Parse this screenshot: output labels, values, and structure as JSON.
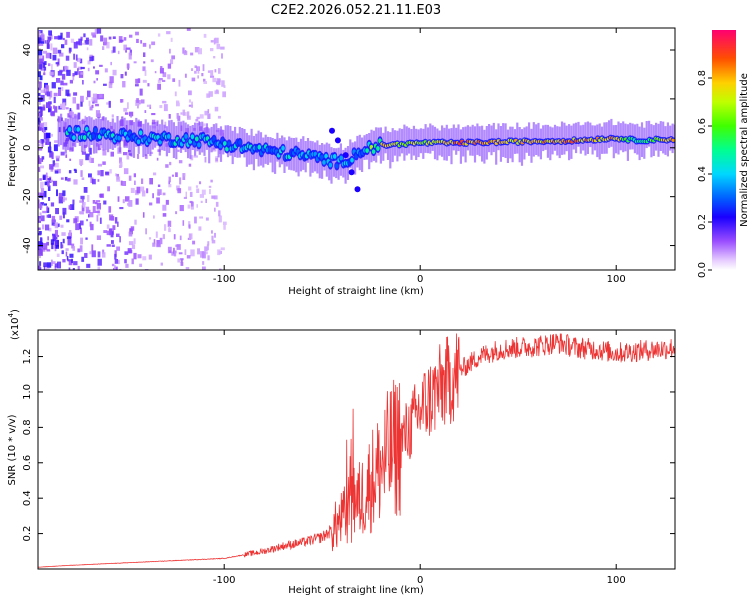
{
  "title": "C2E2.2026.052.21.11.E03",
  "chart_data": [
    {
      "type": "heatmap",
      "name": "spectrogram",
      "xlabel": "Height of straight line (km)",
      "ylabel": "Frequency (Hz)",
      "xlim": [
        -195,
        130
      ],
      "ylim": [
        -50,
        49
      ],
      "xticks": [
        -100,
        0,
        100
      ],
      "yticks": [
        -40,
        -20,
        0,
        20,
        40
      ],
      "grid": false,
      "colorbar": {
        "label": "Normalized spectral amplitude",
        "range": [
          0,
          1
        ],
        "ticks": [
          0.0,
          0.2,
          0.4,
          0.6,
          0.8
        ],
        "colors": [
          "#ffffff",
          "#b070ff",
          "#4b00ff",
          "#0000ff",
          "#00d8ff",
          "#00ff70",
          "#a8ff00",
          "#ffd000",
          "#ff5000",
          "#ff0060"
        ]
      },
      "ridge": {
        "x": [
          -170,
          -140,
          -110,
          -80,
          -60,
          -40,
          -30,
          -20,
          0,
          20,
          50,
          80,
          100,
          110,
          130
        ],
        "freq": [
          6,
          4,
          3,
          -1,
          -3,
          -6,
          -1,
          1,
          2,
          2,
          2.5,
          3,
          4,
          3,
          3.5
        ],
        "amplitude": [
          0.45,
          0.45,
          0.45,
          0.45,
          0.42,
          0.4,
          0.45,
          0.8,
          0.7,
          0.9,
          0.8,
          0.85,
          0.8,
          0.5,
          0.85
        ]
      },
      "branch": {
        "x": [
          -45,
          -42,
          -38,
          -35,
          -32
        ],
        "freq": [
          7,
          3,
          -3,
          -10,
          -17
        ]
      }
    },
    {
      "type": "line",
      "name": "snr",
      "xlabel": "Height of straight line (km)",
      "ylabel": "SNR (10 * v/v)",
      "multiplier": "(x10",
      "multiplier_exp": "4",
      "color": "#ee3333",
      "xlim": [
        -195,
        130
      ],
      "ylim": [
        0,
        1.35
      ],
      "xticks": [
        -100,
        0,
        100
      ],
      "yticks": [
        0.2,
        0.4,
        0.6,
        0.8,
        1.0,
        1.2
      ],
      "series": [
        {
          "name": "SNR",
          "x": [
            -195,
            -180,
            -160,
            -140,
            -120,
            -100,
            -80,
            -70,
            -60,
            -50,
            -45,
            -40,
            -35,
            -30,
            -25,
            -20,
            -15,
            -10,
            -5,
            0,
            10,
            20,
            30,
            40,
            50,
            60,
            70,
            80,
            90,
            100,
            110,
            120,
            130
          ],
          "y": [
            0.01,
            0.02,
            0.03,
            0.04,
            0.05,
            0.06,
            0.1,
            0.13,
            0.15,
            0.18,
            0.22,
            0.28,
            0.35,
            0.4,
            0.5,
            0.58,
            0.66,
            0.72,
            0.8,
            0.9,
            1.02,
            1.12,
            1.2,
            1.24,
            1.25,
            1.26,
            1.28,
            1.25,
            1.24,
            1.22,
            1.23,
            1.24,
            1.25
          ]
        }
      ]
    }
  ]
}
